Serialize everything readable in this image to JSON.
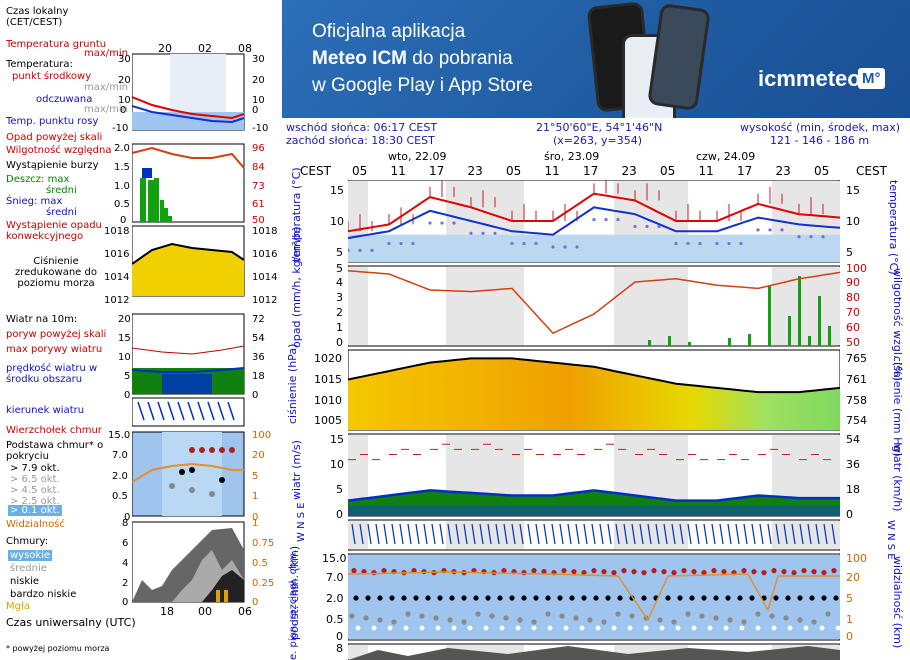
{
  "left_panel": {
    "time_header": "Czas lokalny\n(CET/CEST)",
    "time_ticks": [
      "20",
      "02",
      "08"
    ],
    "soil_label": "Temperatura gruntu",
    "soil_sub": "max/min",
    "temp_label": "Temperatura:",
    "temp_mid": "punkt środkowy",
    "temp_max": "max/min",
    "feels": "odczuwana",
    "feels_sub": "max/min",
    "dew": "Temp. punktu rosy",
    "temp_ticks_l": [
      "30",
      "20",
      "10",
      "0",
      "-10"
    ],
    "temp_ticks_r": [
      "30",
      "20",
      "10",
      "0",
      "-10"
    ],
    "precip_sky": "Opad powyżej skali",
    "humidity": "Wilgotność względna",
    "storm": "Wystąpienie burzy",
    "rain": "Deszcz: max",
    "rain_mid": "średni",
    "snow": "Śnieg: max",
    "snow_mid": "średni",
    "precip_occ": "Wystąpienie opadu konwekcyjnego",
    "precip_ticks_l": [
      "2.0",
      "1.5",
      "1.0",
      "0.5",
      "0"
    ],
    "precip_ticks_r": [
      "96",
      "84",
      "73",
      "61",
      "50"
    ],
    "pressure_label": "Ciśnienie zredukowane do poziomu morza",
    "pressure_ticks": [
      "1018",
      "1016",
      "1014",
      "1012"
    ],
    "wind_label": "Wiatr na 10m:",
    "gust_sky": "poryw powyżej skali",
    "gust_max": "max porywy wiatru",
    "wind_avg": "prędkość wiatru w środku obszaru",
    "wind_ticks_l": [
      "20",
      "15",
      "10",
      "5",
      "0"
    ],
    "wind_ticks_r": [
      "72",
      "54",
      "36",
      "18",
      "0"
    ],
    "wind_dir": "kierunek wiatru",
    "cloud_top": "Wierzchołek chmur",
    "cloud_base": "Podstawa chmur* o pokryciu",
    "cb1": "> 7.9 okt.",
    "cb2": "> 6.5 okt.",
    "cb3": "> 4.5 okt.",
    "cb4": "> 2.5 okt.",
    "cb5": "> 0.1 okt.",
    "cloud_ticks_l": [
      "15.0",
      "7.0",
      "2.0",
      "0.5",
      "0"
    ],
    "cloud_ticks_r": [
      "100",
      "20",
      "5",
      "1",
      "0"
    ],
    "visibility": "Widzialność",
    "clouds": "Chmury:",
    "c_high": "wysokie",
    "c_mid": "średnie",
    "c_low": "niskie",
    "c_vlow": "bardzo niskie",
    "fog": "Mgła",
    "clouds_ticks_l": [
      "8",
      "6",
      "4",
      "2",
      "0"
    ],
    "clouds_ticks_r": [
      "1",
      "0.75",
      "0.5",
      "0.25",
      "0"
    ],
    "utc_label": "Czas uniwersalny (UTC)",
    "utc_ticks": [
      "18",
      "00",
      "06"
    ],
    "footnote": "* powyżej poziomu morza"
  },
  "banner": {
    "line1": "Oficjalna aplikacja",
    "line2a": "Meteo ICM",
    "line2b": " do pobrania",
    "line3": "w Google Play i App Store",
    "logo": "icmmeteo",
    "logo_badge": "M°"
  },
  "info": {
    "sunrise": "wschód słońca: 06:17 CEST",
    "sunset": "zachód słońca: 18:30 CEST",
    "coords": "21°50'60\"E, 54°1'46\"N",
    "grid": "(x=263,  y=354)",
    "elev_label": "wysokość (min, środek, max)",
    "elev": "121 - 146 - 186 m"
  },
  "main": {
    "tz": "CEST",
    "days": [
      "wto, 22.09",
      "śro, 23.09",
      "czw, 24.09"
    ],
    "hours": [
      "05",
      "11",
      "17",
      "23",
      "05",
      "11",
      "17",
      "23",
      "05",
      "11",
      "17",
      "23",
      "05"
    ],
    "temp_ylabel": "temperatura (°C)",
    "temp_ticks": [
      "15",
      "10",
      "5"
    ],
    "precip_ylabel": "opad (mm/h, kg/m²/h)",
    "precip_ticks": [
      "5",
      "4",
      "3",
      "2",
      "1",
      "0"
    ],
    "hum_ylabel": "wilgotność wzgl. (%)",
    "hum_ticks": [
      "100",
      "90",
      "80",
      "70",
      "60",
      "50"
    ],
    "press_ylabel": "ciśnienie (hPa)",
    "press_ticks": [
      "1020",
      "1015",
      "1010",
      "1005"
    ],
    "press_r_ylabel": "ciśnienie (mm Hg)",
    "press_r_ticks": [
      "765",
      "761",
      "758",
      "754"
    ],
    "wind_ylabel": "wiatr (m/s)",
    "wind_ticks": [
      "15",
      "10",
      "5",
      "0"
    ],
    "wind_r_ylabel": "wiatr (km/h)",
    "wind_r_ticks": [
      "54",
      "36",
      "18",
      "0"
    ],
    "cloud_ylabel": "podst. chm. (km)",
    "cloud_ticks": [
      "15.0",
      "7.0",
      "2.0",
      "0.5",
      "0"
    ],
    "vis_ylabel": "widzialność (km)",
    "vis_ticks": [
      "100",
      "20",
      "5",
      "1",
      "0"
    ],
    "extra_ylabel": "e. pion. rozciągł. chm.",
    "extra_tick": "8",
    "wn_label": "W N S E"
  },
  "colors": {
    "temp": "#e00000",
    "feels": "#1030d0",
    "dew": "#7070e0",
    "humidity": "#d04010",
    "precip": "#10a010",
    "pressure_fill": "#f0d000",
    "pressure_line": "#000000",
    "wind": "#0030c0",
    "wind_fill": "#108010",
    "band_blue": "#a8d0f0"
  },
  "chart_data": [
    {
      "type": "line",
      "title": "temperatura",
      "x": [
        "05",
        "11",
        "17",
        "23",
        "05",
        "11",
        "17",
        "23",
        "05",
        "11",
        "17",
        "23",
        "05"
      ],
      "ylabel": "temperatura (°C)",
      "ylim": [
        5,
        17
      ],
      "series": [
        {
          "name": "max/min",
          "values": [
            9.5,
            10.5,
            14.5,
            13,
            11,
            11,
            15,
            14,
            11,
            11,
            13.5,
            12,
            11.5
          ]
        },
        {
          "name": "odczuwana",
          "values": [
            8.5,
            9.5,
            12.5,
            11,
            9.5,
            9,
            13,
            12,
            9.5,
            9.5,
            11.5,
            10.5,
            10
          ]
        }
      ]
    },
    {
      "type": "line",
      "title": "wilgotność wzgl.",
      "ylabel": "wilgotność wzgl. (%)",
      "ylim": [
        50,
        100
      ],
      "series": [
        {
          "name": "wilgotność",
          "values": [
            97,
            95,
            85,
            84,
            86,
            58,
            70,
            90,
            92,
            88,
            86,
            92,
            96
          ]
        }
      ]
    },
    {
      "type": "area",
      "title": "ciśnienie",
      "ylabel": "ciśnienie (hPa)",
      "ylim": [
        1003,
        1022
      ],
      "series": [
        {
          "name": "ciśnienie",
          "values": [
            1015,
            1017,
            1019,
            1020,
            1020,
            1019,
            1018,
            1016,
            1014,
            1013,
            1012,
            1012,
            1013
          ]
        }
      ]
    },
    {
      "type": "line",
      "title": "wiatr",
      "ylabel": "wiatr (m/s)",
      "ylim": [
        0,
        16
      ],
      "series": [
        {
          "name": "poryw",
          "values": [
            11,
            12,
            13,
            13,
            12,
            12,
            13,
            12,
            11,
            11,
            12,
            11,
            11
          ]
        },
        {
          "name": "prędkość",
          "values": [
            3,
            4,
            5,
            4.5,
            4,
            4,
            5,
            4,
            3,
            3,
            4,
            3.5,
            3.5
          ]
        }
      ]
    }
  ]
}
